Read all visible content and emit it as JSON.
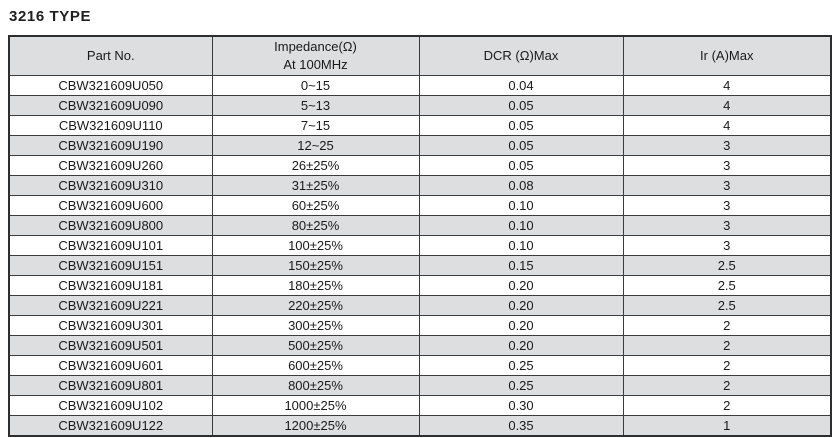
{
  "title": "3216 TYPE",
  "colors": {
    "header_bg": "#dcdee0",
    "alt_row_bg": "#dcdee0",
    "border": "#3c3c3c",
    "outer_border": "#2e2e2e",
    "text": "#1a1a1a"
  },
  "table": {
    "headers": {
      "part_no": "Part No.",
      "impedance_line1": "Impedance(Ω)",
      "impedance_line2": "At 100MHz",
      "dcr": "DCR (Ω)Max",
      "ir": "Ir (A)Max"
    },
    "rows": [
      {
        "part_no": "CBW321609U050",
        "impedance": "0~15",
        "dcr": "0.04",
        "ir": "4"
      },
      {
        "part_no": "CBW321609U090",
        "impedance": "5~13",
        "dcr": "0.05",
        "ir": "4"
      },
      {
        "part_no": "CBW321609U110",
        "impedance": "7~15",
        "dcr": "0.05",
        "ir": "4"
      },
      {
        "part_no": "CBW321609U190",
        "impedance": "12~25",
        "dcr": "0.05",
        "ir": "3"
      },
      {
        "part_no": "CBW321609U260",
        "impedance": "26±25%",
        "dcr": "0.05",
        "ir": "3"
      },
      {
        "part_no": "CBW321609U310",
        "impedance": "31±25%",
        "dcr": "0.08",
        "ir": "3"
      },
      {
        "part_no": "CBW321609U600",
        "impedance": "60±25%",
        "dcr": "0.10",
        "ir": "3"
      },
      {
        "part_no": "CBW321609U800",
        "impedance": "80±25%",
        "dcr": "0.10",
        "ir": "3"
      },
      {
        "part_no": "CBW321609U101",
        "impedance": "100±25%",
        "dcr": "0.10",
        "ir": "3"
      },
      {
        "part_no": "CBW321609U151",
        "impedance": "150±25%",
        "dcr": "0.15",
        "ir": "2.5"
      },
      {
        "part_no": "CBW321609U181",
        "impedance": "180±25%",
        "dcr": "0.20",
        "ir": "2.5"
      },
      {
        "part_no": "CBW321609U221",
        "impedance": "220±25%",
        "dcr": "0.20",
        "ir": "2.5"
      },
      {
        "part_no": "CBW321609U301",
        "impedance": "300±25%",
        "dcr": "0.20",
        "ir": "2"
      },
      {
        "part_no": "CBW321609U501",
        "impedance": "500±25%",
        "dcr": "0.20",
        "ir": "2"
      },
      {
        "part_no": "CBW321609U601",
        "impedance": "600±25%",
        "dcr": "0.25",
        "ir": "2"
      },
      {
        "part_no": "CBW321609U801",
        "impedance": "800±25%",
        "dcr": "0.25",
        "ir": "2"
      },
      {
        "part_no": "CBW321609U102",
        "impedance": "1000±25%",
        "dcr": "0.30",
        "ir": "2"
      },
      {
        "part_no": "CBW321609U122",
        "impedance": "1200±25%",
        "dcr": "0.35",
        "ir": "1"
      }
    ]
  }
}
